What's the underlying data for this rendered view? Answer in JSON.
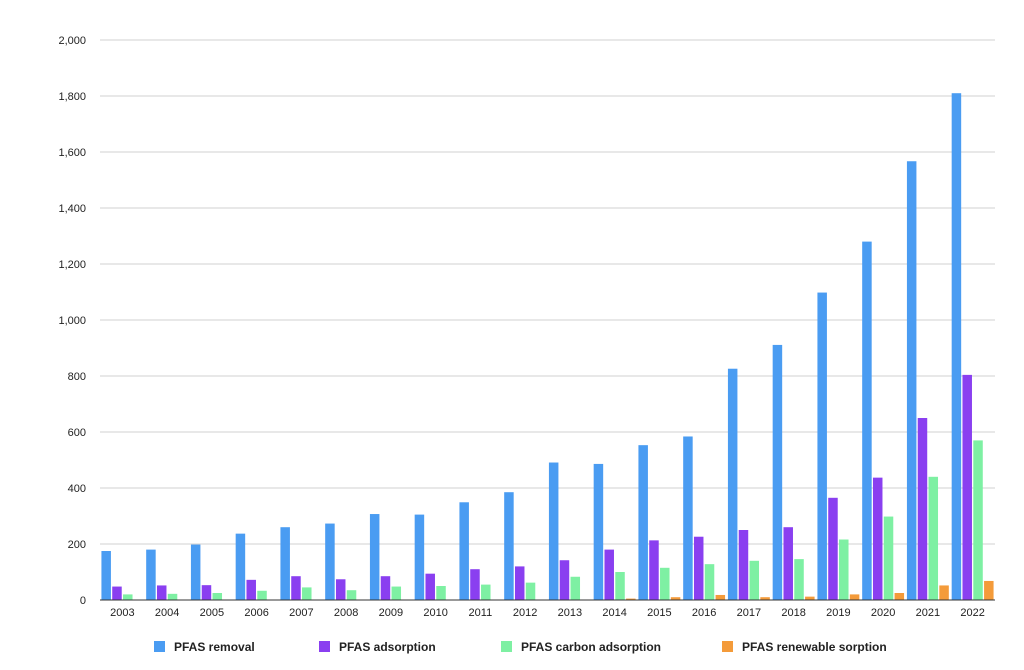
{
  "chart_data": {
    "type": "bar",
    "categories": [
      "2003",
      "2004",
      "2005",
      "2006",
      "2007",
      "2008",
      "2009",
      "2010",
      "2011",
      "2012",
      "2013",
      "2014",
      "2015",
      "2016",
      "2017",
      "2018",
      "2019",
      "2020",
      "2021",
      "2022"
    ],
    "series": [
      {
        "name": "PFAS removal",
        "color": "#4a9cf2",
        "values": [
          175,
          180,
          198,
          237,
          260,
          273,
          307,
          305,
          349,
          385,
          491,
          486,
          553,
          584,
          826,
          911,
          1098,
          1280,
          1567,
          1810
        ]
      },
      {
        "name": "PFAS adsorption",
        "color": "#8a3ff0",
        "values": [
          48,
          52,
          53,
          72,
          85,
          74,
          85,
          94,
          110,
          120,
          142,
          180,
          213,
          226,
          250,
          260,
          365,
          437,
          650,
          804
        ]
      },
      {
        "name": "PFAS carbon adsorption",
        "color": "#7ef0a3",
        "values": [
          20,
          22,
          25,
          33,
          45,
          35,
          48,
          50,
          55,
          62,
          83,
          100,
          115,
          128,
          140,
          146,
          216,
          298,
          440,
          570
        ]
      },
      {
        "name": "PFAS renewable sorption",
        "color": "#f49b3a",
        "values": [
          0,
          0,
          0,
          0,
          0,
          0,
          0,
          0,
          0,
          0,
          0,
          5,
          10,
          18,
          10,
          12,
          20,
          25,
          52,
          68
        ]
      }
    ],
    "yticks": [
      "0",
      "200",
      "400",
      "600",
      "800",
      "1,000",
      "1,200",
      "1,400",
      "1,600",
      "1,800",
      "2,000"
    ],
    "ylim": [
      0,
      2000
    ],
    "grid": true,
    "legend": "bottom",
    "title": "",
    "xlabel": "",
    "ylabel": ""
  }
}
